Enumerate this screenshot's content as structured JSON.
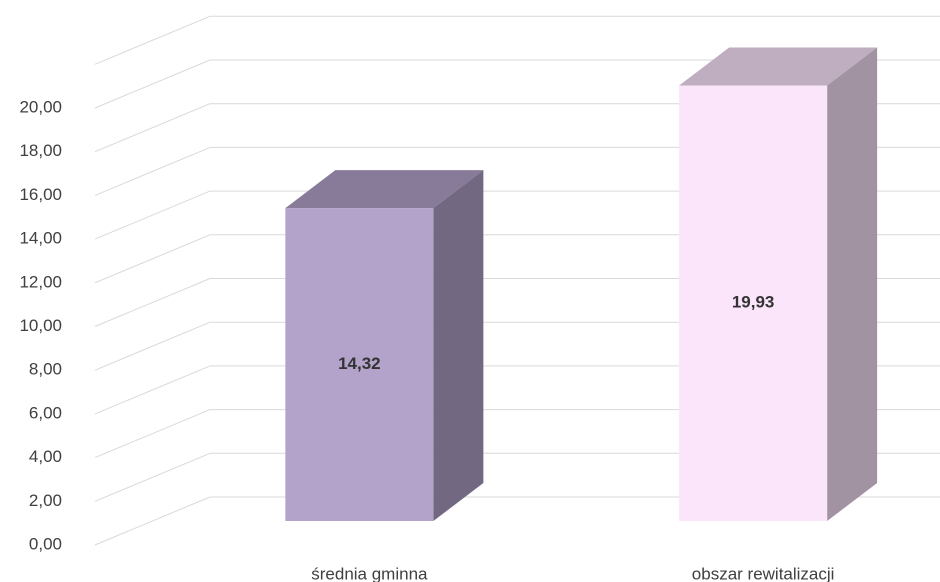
{
  "chart_data": {
    "type": "bar3d",
    "categories": [
      "średnia gminna",
      "obszar rewitalizacji"
    ],
    "values": [
      14.32,
      19.93
    ],
    "value_labels": [
      "14,32",
      "19,93"
    ],
    "colors": [
      "#b3a2c9",
      "#fbe5fb"
    ],
    "ylim": [
      0,
      22
    ],
    "yticks": [
      {
        "value": 0,
        "label": "0,00"
      },
      {
        "value": 2,
        "label": "2,00"
      },
      {
        "value": 4,
        "label": "4,00"
      },
      {
        "value": 6,
        "label": "6,00"
      },
      {
        "value": 8,
        "label": "8,00"
      },
      {
        "value": 10,
        "label": "10,00"
      },
      {
        "value": 12,
        "label": "12,00"
      },
      {
        "value": 14,
        "label": "14,00"
      },
      {
        "value": 16,
        "label": "16,00"
      },
      {
        "value": 18,
        "label": "18,00"
      },
      {
        "value": 20,
        "label": "20,00"
      }
    ],
    "grid": true
  }
}
